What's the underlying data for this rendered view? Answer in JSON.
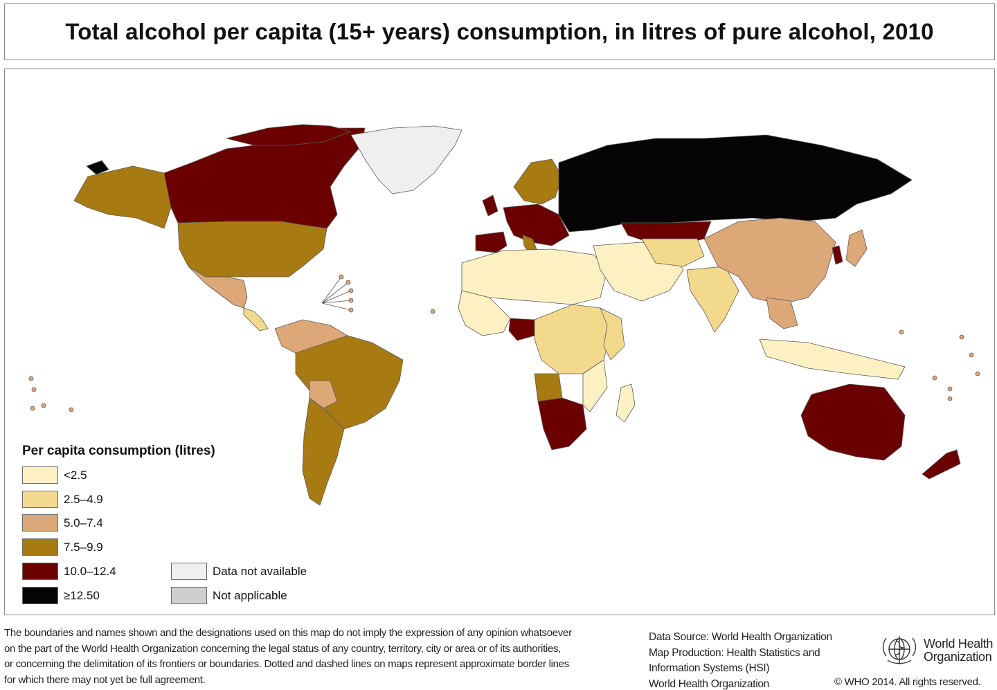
{
  "title": "Total alcohol per capita (15+ years) consumption, in litres of pure alcohol, 2010",
  "colors": {
    "lt2_5": "#fdf1c4",
    "c2_5_4_9": "#f3d98c",
    "c5_0_7_4": "#dca878",
    "c7_5_9_9": "#a87a12",
    "c10_0_12_4": "#6b0000",
    "ge12_5": "#050505",
    "not_available": "#efefef",
    "not_applicable": "#cfcfcf",
    "ocean": "#ffffff",
    "border": "#7a7a7a"
  },
  "legend": {
    "title": "Per capita consumption (litres)",
    "items": [
      {
        "label": "<2.5",
        "color": "#fdf1c4"
      },
      {
        "label": "2.5–4.9",
        "color": "#f3d98c"
      },
      {
        "label": "5.0–7.4",
        "color": "#dca878"
      },
      {
        "label": "7.5–9.9",
        "color": "#a87a12"
      },
      {
        "label": "10.0–12.4",
        "color": "#6b0000"
      },
      {
        "label": "≥12.50",
        "color": "#050505"
      }
    ],
    "extra": [
      {
        "label": "Data not available",
        "color": "#efefef"
      },
      {
        "label": "Not applicable",
        "color": "#cfcfcf"
      }
    ]
  },
  "footer": {
    "disclaimer_lines": [
      "The boundaries and names shown and the designations used on this map do not imply the expression of any opinion whatsoever",
      "on the part of the World Health Organization concerning the legal status of any country, territory, city or area or of its authorities,",
      "or concerning the delimitation of its frontiers or boundaries. Dotted and dashed lines on maps represent approximate border lines",
      "for which there may not yet be full agreement."
    ],
    "source_lines": [
      "Data Source: World Health Organization",
      "Map Production: Health Statistics and",
      "Information Systems (HSI)",
      "World Health Organization"
    ],
    "who_name_lines": [
      "World Health",
      "Organization"
    ],
    "copyright": "© WHO 2014. All rights reserved."
  }
}
